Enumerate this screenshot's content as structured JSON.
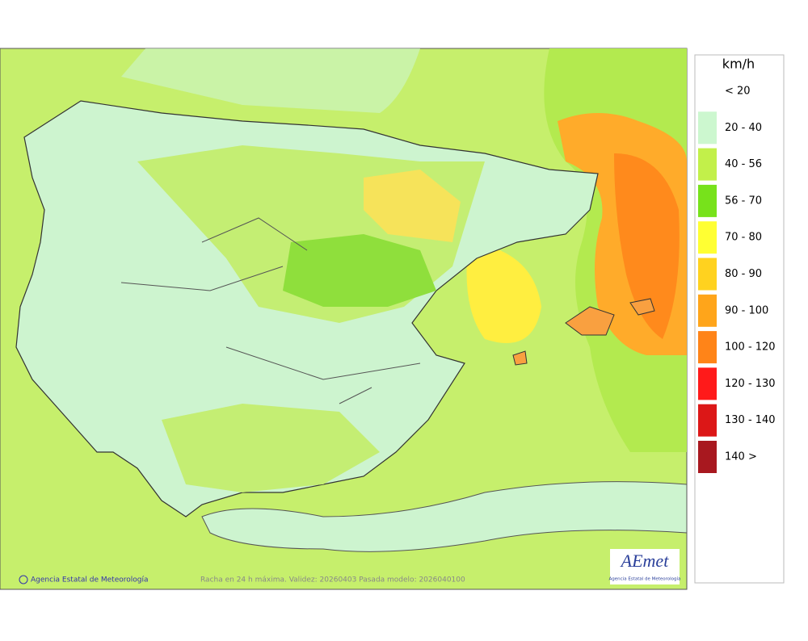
{
  "legend": {
    "title": "km/h",
    "items": [
      {
        "label": "< 20",
        "color": "#ffffff"
      },
      {
        "label": "20 - 40",
        "color": "#ccf7cf"
      },
      {
        "label": "40 - 56",
        "color": "#c2f04a"
      },
      {
        "label": "56 - 70",
        "color": "#77e21b"
      },
      {
        "label": "70 - 80",
        "color": "#ffff33"
      },
      {
        "label": "80 - 90",
        "color": "#ffd21f"
      },
      {
        "label": "90 - 100",
        "color": "#ffa51a"
      },
      {
        "label": "100 - 120",
        "color": "#ff8418"
      },
      {
        "label": "120 - 130",
        "color": "#ff1a1a"
      },
      {
        "label": "130 - 140",
        "color": "#dc1717"
      },
      {
        "label": "140 >",
        "color": "#a8181f"
      }
    ]
  },
  "footer": {
    "credit": "Agencia Estatal de Meteorología",
    "caption": "Racha en 24 h máxima. Validez: 20260403 Pasada modelo: 2026040100"
  },
  "logo": {
    "text": "AEmet",
    "subtitle": "Agencia Estatal de Meteorología"
  }
}
